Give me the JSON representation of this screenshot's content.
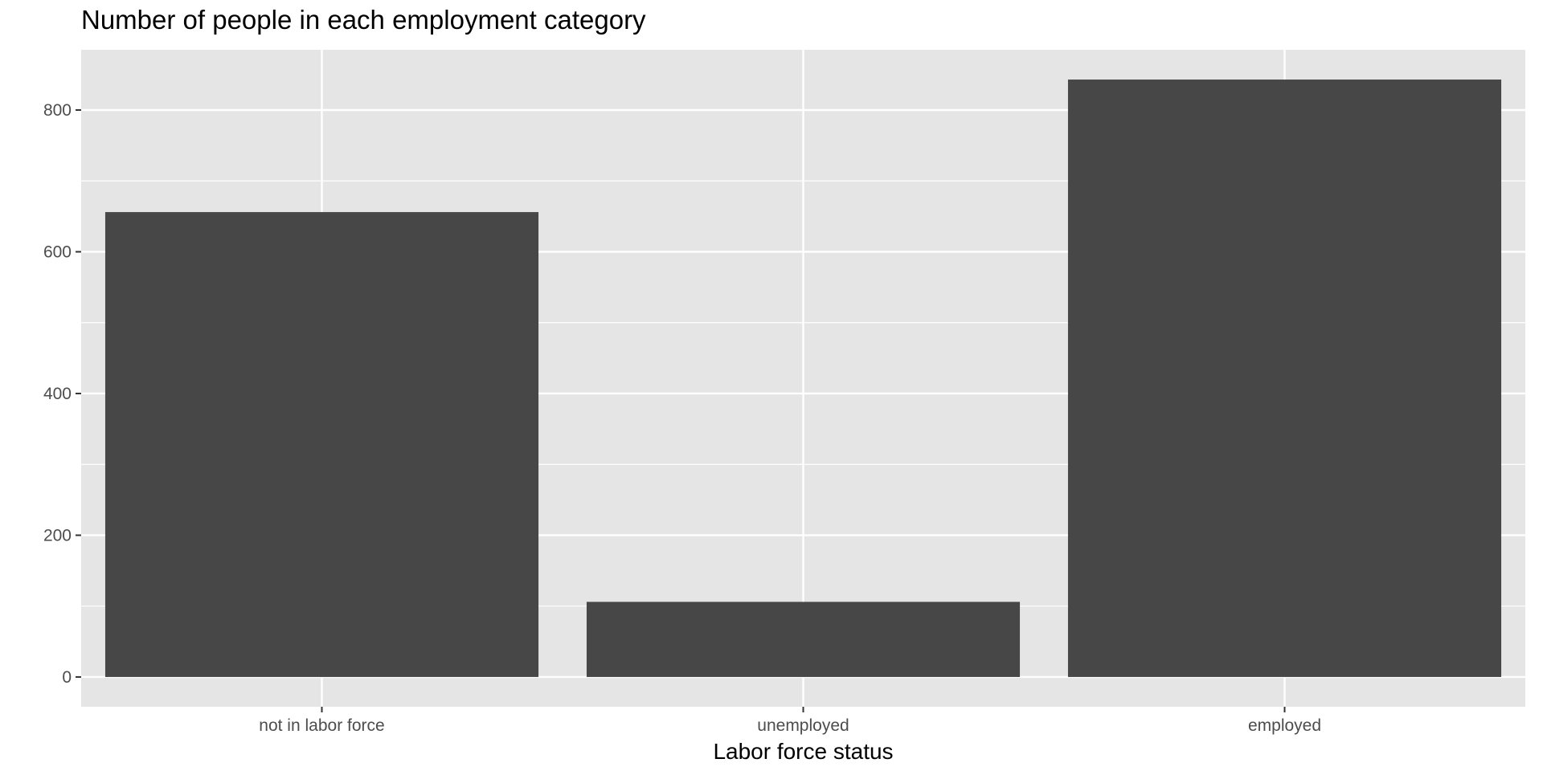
{
  "chart_data": {
    "type": "bar",
    "title": "Number of people in each employment category",
    "xlabel": "Labor force status",
    "ylabel": "",
    "categories": [
      "not in labor force",
      "unemployed",
      "employed"
    ],
    "values": [
      656,
      106,
      843
    ],
    "ylim": [
      0,
      885
    ],
    "yticks": [
      0,
      200,
      400,
      600,
      800
    ],
    "grid": true,
    "legend": "none",
    "colors": {
      "panel": "#e5e5e5",
      "grid": "#ffffff",
      "bar": "#474747",
      "tick": "#4d4d4d"
    }
  }
}
